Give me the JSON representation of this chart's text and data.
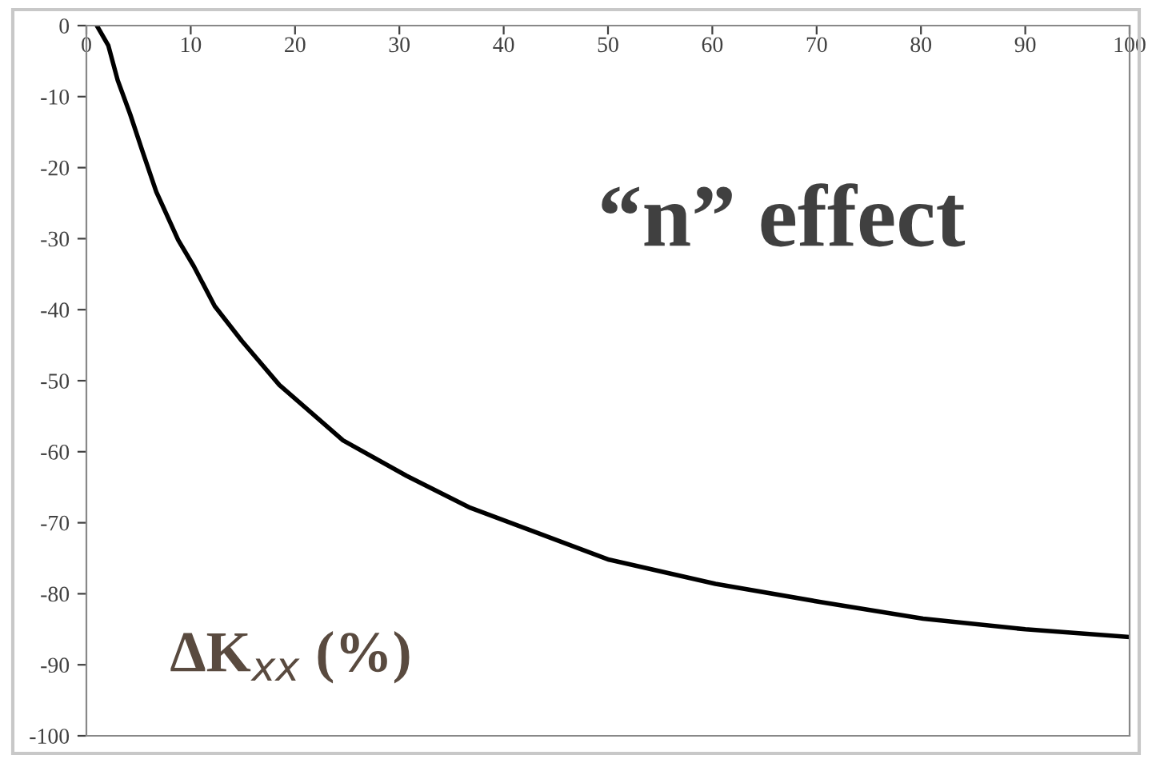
{
  "chart_data": {
    "type": "line",
    "x": [
      1.0,
      2.1,
      3.0,
      4.2,
      5.4,
      6.7,
      8.8,
      10.3,
      12.3,
      14.9,
      18.5,
      24.6,
      30.7,
      36.8,
      43.0,
      50.1,
      60.3,
      70.5,
      80.2,
      90.0,
      100.0
    ],
    "series": [
      {
        "color": "#000000",
        "values": [
          0,
          -2.8,
          -7.7,
          -12.5,
          -17.8,
          -23.4,
          -30.2,
          -33.9,
          -39.5,
          -44.4,
          -50.6,
          -58.4,
          -63.4,
          -67.9,
          -71.3,
          -75.2,
          -78.6,
          -81.2,
          -83.5,
          -85.0,
          -86.1
        ]
      }
    ],
    "xlim": [
      0,
      100
    ],
    "xticks": [
      0,
      10,
      20,
      30,
      40,
      50,
      60,
      70,
      80,
      90,
      100
    ],
    "ylim": [
      -100,
      0
    ],
    "yticks": [
      -100,
      -90,
      -80,
      -70,
      -60,
      -50,
      -40,
      -30,
      -20,
      -10,
      0
    ],
    "annotations": [
      "“n” effect",
      "ΔK$_{xx}$ (%)"
    ],
    "grid": false,
    "legend": false,
    "marker": "none",
    "line_style": "solid"
  }
}
